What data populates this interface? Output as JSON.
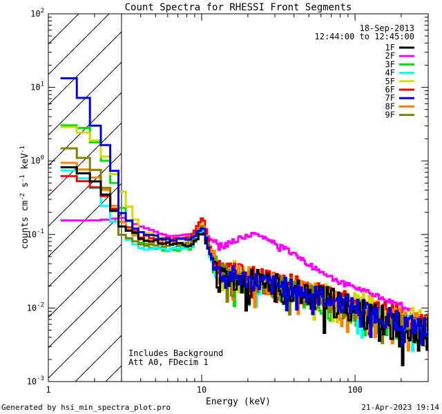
{
  "chart_data": {
    "type": "line",
    "title": "Count Spectra for RHESSI Front Segments",
    "xlabel": "Energy (keV)",
    "ylabel": "counts cm",
    "ylabel_parts": {
      "base": "counts cm",
      "exp1": "-2",
      "mid1": " s",
      "exp2": "-1",
      "mid2": " keV",
      "exp3": "-1"
    },
    "xscale": "log",
    "yscale": "log",
    "xlim": [
      1,
      300
    ],
    "ylim": [
      0.001,
      100
    ],
    "x_ticks": [
      {
        "value": 1,
        "label": "1"
      },
      {
        "value": 10,
        "label": "10"
      },
      {
        "value": 100,
        "label": "100"
      }
    ],
    "y_ticks": [
      {
        "value": 100,
        "base": "10",
        "exp": "2"
      },
      {
        "value": 10,
        "base": "10",
        "exp": "1"
      },
      {
        "value": 1,
        "base": "10",
        "exp": "0"
      },
      {
        "value": 0.1,
        "base": "10",
        "exp": "-1"
      },
      {
        "value": 0.01,
        "base": "10",
        "exp": "-2"
      },
      {
        "value": 0.001,
        "base": "10",
        "exp": "-3"
      }
    ],
    "date": "18-Sep-2013",
    "time_range": "12:44:00 to 12:45:00",
    "hatched_region_keV": [
      1,
      3
    ],
    "annotation_lines": [
      "Includes Background",
      "Att A0, FDecim 1"
    ],
    "footer_left": "Generated by hsi_min_spectra_plot.pro",
    "footer_right": "21-Apr-2023 19:14",
    "series": [
      {
        "name": "1F",
        "color": "#000000",
        "noise": 0.9,
        "seed": 11,
        "points": [
          [
            1.2,
            0.85
          ],
          [
            1.5,
            0.8
          ],
          [
            2.0,
            0.55
          ],
          [
            2.5,
            0.3
          ],
          [
            3.0,
            0.13
          ],
          [
            4.0,
            0.09
          ],
          [
            6.0,
            0.075
          ],
          [
            8.5,
            0.07
          ],
          [
            10.2,
            0.11
          ],
          [
            11.5,
            0.05
          ],
          [
            13,
            0.025
          ],
          [
            20,
            0.022
          ],
          [
            40,
            0.017
          ],
          [
            70,
            0.012
          ],
          [
            130,
            0.0075
          ],
          [
            200,
            0.0055
          ],
          [
            260,
            0.0048
          ]
        ]
      },
      {
        "name": "2F",
        "color": "#ff00ff",
        "noise": 0.15,
        "seed": 22,
        "points": [
          [
            1.2,
            0.155
          ],
          [
            1.5,
            0.155
          ],
          [
            2.0,
            0.155
          ],
          [
            2.5,
            0.16
          ],
          [
            3.0,
            0.17
          ],
          [
            4.0,
            0.13
          ],
          [
            6.0,
            0.095
          ],
          [
            8.5,
            0.1
          ],
          [
            10.0,
            0.12
          ],
          [
            11.5,
            0.085
          ],
          [
            14,
            0.07
          ],
          [
            17,
            0.085
          ],
          [
            21,
            0.1
          ],
          [
            26,
            0.09
          ],
          [
            33,
            0.07
          ],
          [
            45,
            0.045
          ],
          [
            60,
            0.032
          ],
          [
            80,
            0.022
          ],
          [
            110,
            0.018
          ],
          [
            150,
            0.014
          ],
          [
            200,
            0.011
          ],
          [
            260,
            0.0075
          ],
          [
            290,
            0.0068
          ]
        ]
      },
      {
        "name": "3F",
        "color": "#00e000",
        "noise": 0.7,
        "seed": 33,
        "points": [
          [
            1.2,
            3.1
          ],
          [
            1.5,
            3.0
          ],
          [
            1.7,
            2.8
          ],
          [
            2.0,
            1.9
          ],
          [
            2.4,
            0.95
          ],
          [
            2.7,
            0.5
          ],
          [
            3.0,
            0.24
          ],
          [
            4.0,
            0.075
          ],
          [
            6.0,
            0.06
          ],
          [
            8.5,
            0.065
          ],
          [
            10.2,
            0.12
          ],
          [
            11.5,
            0.05
          ],
          [
            13,
            0.028
          ],
          [
            20,
            0.023
          ],
          [
            40,
            0.016
          ],
          [
            70,
            0.01
          ],
          [
            130,
            0.0068
          ],
          [
            200,
            0.005
          ],
          [
            260,
            0.0045
          ]
        ]
      },
      {
        "name": "4F",
        "color": "#00ffff",
        "noise": 0.7,
        "seed": 44,
        "points": [
          [
            1.2,
            0.8
          ],
          [
            1.5,
            0.7
          ],
          [
            2.0,
            0.45
          ],
          [
            2.5,
            0.2
          ],
          [
            3.0,
            0.1
          ],
          [
            4.0,
            0.065
          ],
          [
            6.0,
            0.062
          ],
          [
            8.5,
            0.068
          ],
          [
            10.2,
            0.12
          ],
          [
            11.5,
            0.045
          ],
          [
            13,
            0.03
          ],
          [
            20,
            0.024
          ],
          [
            40,
            0.017
          ],
          [
            70,
            0.012
          ],
          [
            130,
            0.008
          ],
          [
            200,
            0.006
          ],
          [
            260,
            0.005
          ]
        ]
      },
      {
        "name": "5F",
        "color": "#d8d800",
        "noise": 0.7,
        "seed": 55,
        "points": [
          [
            1.2,
            3.0
          ],
          [
            1.5,
            2.8
          ],
          [
            2.0,
            2.0
          ],
          [
            2.5,
            0.95
          ],
          [
            3.0,
            0.4
          ],
          [
            4.0,
            0.11
          ],
          [
            6.0,
            0.085
          ],
          [
            8.5,
            0.09
          ],
          [
            10.2,
            0.16
          ],
          [
            11.5,
            0.06
          ],
          [
            13,
            0.035
          ],
          [
            20,
            0.028
          ],
          [
            40,
            0.02
          ],
          [
            70,
            0.015
          ],
          [
            130,
            0.0105
          ],
          [
            200,
            0.0085
          ],
          [
            260,
            0.007
          ]
        ]
      },
      {
        "name": "6F",
        "color": "#ff0000",
        "noise": 0.65,
        "seed": 66,
        "points": [
          [
            1.2,
            0.65
          ],
          [
            1.5,
            0.6
          ],
          [
            2.0,
            0.45
          ],
          [
            2.5,
            0.3
          ],
          [
            3.0,
            0.15
          ],
          [
            4.0,
            0.095
          ],
          [
            6.0,
            0.085
          ],
          [
            8.5,
            0.09
          ],
          [
            10.2,
            0.17
          ],
          [
            11.5,
            0.06
          ],
          [
            13,
            0.035
          ],
          [
            20,
            0.027
          ],
          [
            40,
            0.02
          ],
          [
            70,
            0.014
          ],
          [
            130,
            0.0095
          ],
          [
            200,
            0.0075
          ],
          [
            260,
            0.0065
          ]
        ]
      },
      {
        "name": "7F",
        "color": "#0000e0",
        "noise": 0.6,
        "seed": 77,
        "points": [
          [
            1.2,
            15
          ],
          [
            1.4,
            13
          ],
          [
            1.6,
            8
          ],
          [
            1.8,
            6.5
          ],
          [
            2.0,
            3.2
          ],
          [
            2.3,
            1.9
          ],
          [
            2.6,
            1.0
          ],
          [
            2.9,
            0.4
          ],
          [
            3.0,
            0.2
          ],
          [
            4.0,
            0.105
          ],
          [
            6.0,
            0.085
          ],
          [
            8.5,
            0.085
          ],
          [
            10.2,
            0.13
          ],
          [
            11.5,
            0.05
          ],
          [
            13,
            0.03
          ],
          [
            20,
            0.024
          ],
          [
            40,
            0.018
          ],
          [
            70,
            0.013
          ],
          [
            130,
            0.0088
          ],
          [
            200,
            0.0065
          ],
          [
            260,
            0.0055
          ]
        ]
      },
      {
        "name": "8F",
        "color": "#ff8000",
        "noise": 0.7,
        "seed": 88,
        "points": [
          [
            1.2,
            1.0
          ],
          [
            1.5,
            0.9
          ],
          [
            2.0,
            0.62
          ],
          [
            2.5,
            0.35
          ],
          [
            3.0,
            0.15
          ],
          [
            4.0,
            0.085
          ],
          [
            6.0,
            0.075
          ],
          [
            8.5,
            0.08
          ],
          [
            10.2,
            0.14
          ],
          [
            11.5,
            0.055
          ],
          [
            13,
            0.032
          ],
          [
            20,
            0.025
          ],
          [
            40,
            0.018
          ],
          [
            70,
            0.013
          ],
          [
            130,
            0.009
          ],
          [
            200,
            0.007
          ],
          [
            260,
            0.006
          ]
        ]
      },
      {
        "name": "9F",
        "color": "#808000",
        "noise": 0.7,
        "seed": 99,
        "points": [
          [
            1.2,
            1.6
          ],
          [
            1.5,
            1.4
          ],
          [
            2.0,
            0.8
          ],
          [
            2.5,
            0.35
          ],
          [
            3.0,
            0.1
          ],
          [
            4.0,
            0.075
          ],
          [
            6.0,
            0.07
          ],
          [
            8.5,
            0.075
          ],
          [
            10.2,
            0.13
          ],
          [
            11.5,
            0.05
          ],
          [
            13,
            0.03
          ],
          [
            20,
            0.024
          ],
          [
            40,
            0.017
          ],
          [
            70,
            0.0115
          ],
          [
            130,
            0.0078
          ],
          [
            200,
            0.006
          ],
          [
            260,
            0.005
          ]
        ]
      }
    ]
  }
}
